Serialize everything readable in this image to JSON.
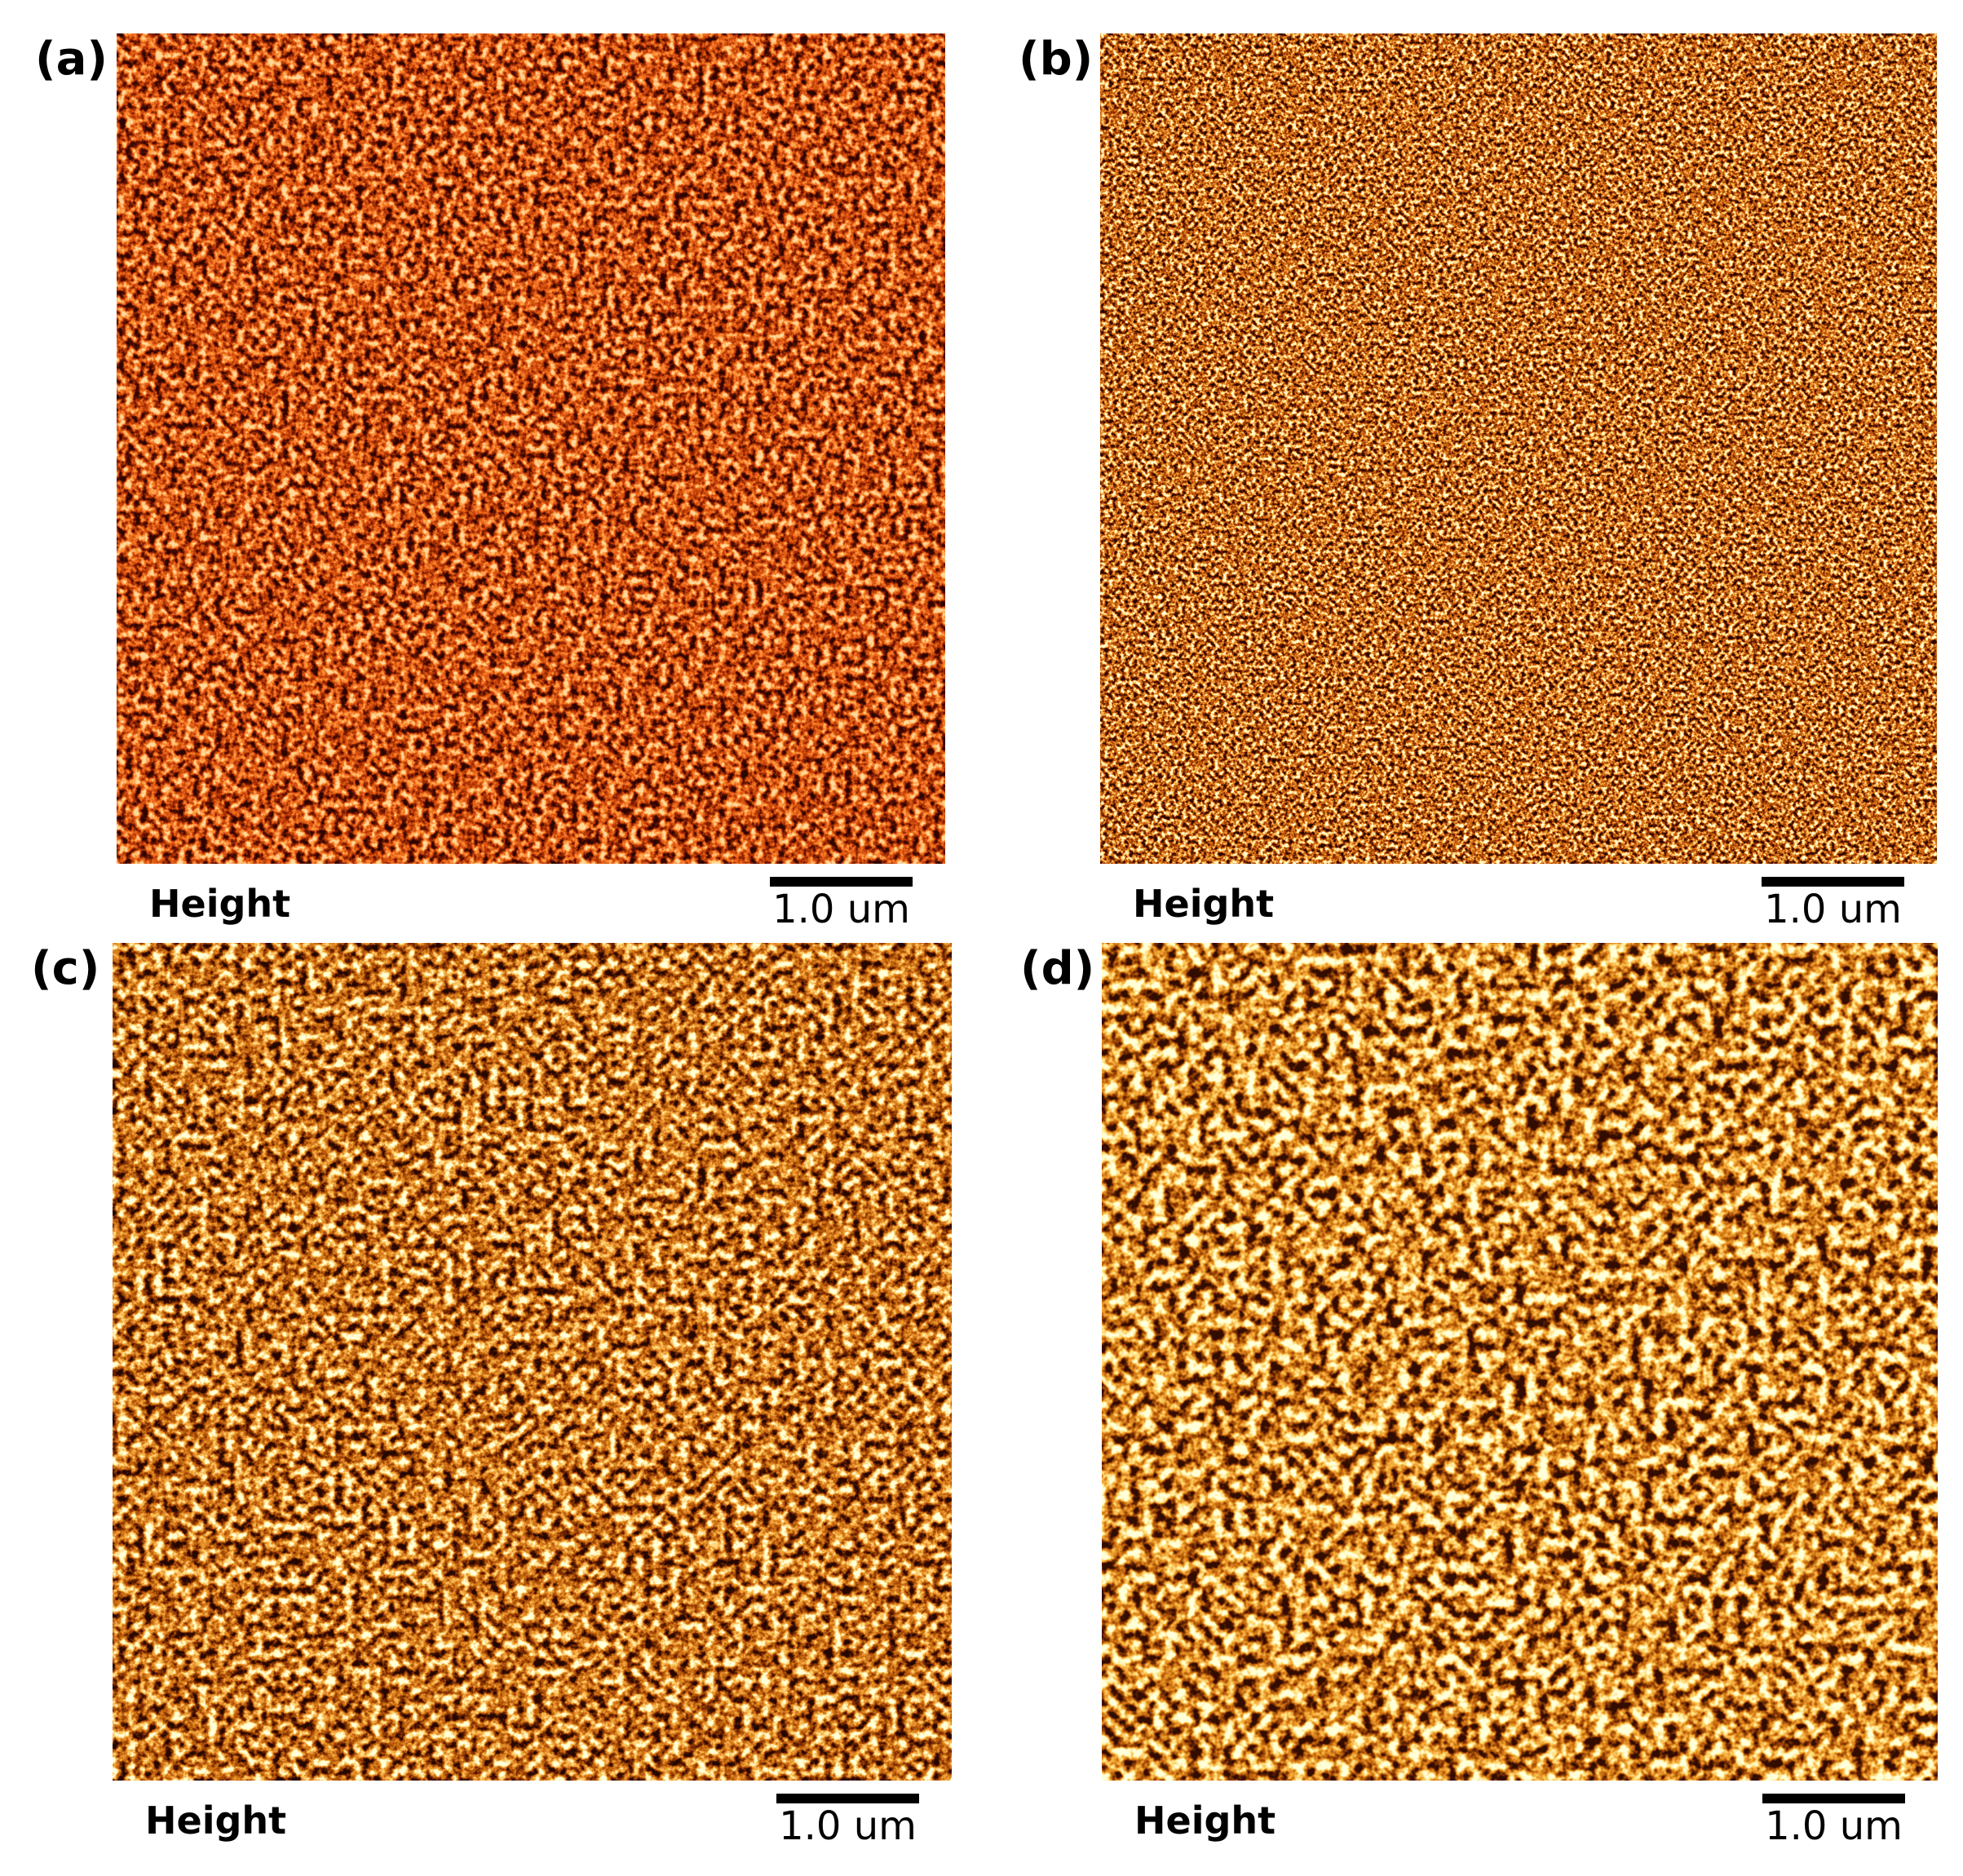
{
  "panels": [
    {
      "label": "(a)",
      "caption": "Height",
      "scale_bar": "1.0 um"
    },
    {
      "label": "(b)",
      "caption": "Height",
      "scale_bar": "1.0 um"
    },
    {
      "label": "(c)",
      "caption": "Height",
      "scale_bar": "1.0 um"
    },
    {
      "label": "(d)",
      "caption": "Height",
      "scale_bar": "1.0 um"
    }
  ]
}
